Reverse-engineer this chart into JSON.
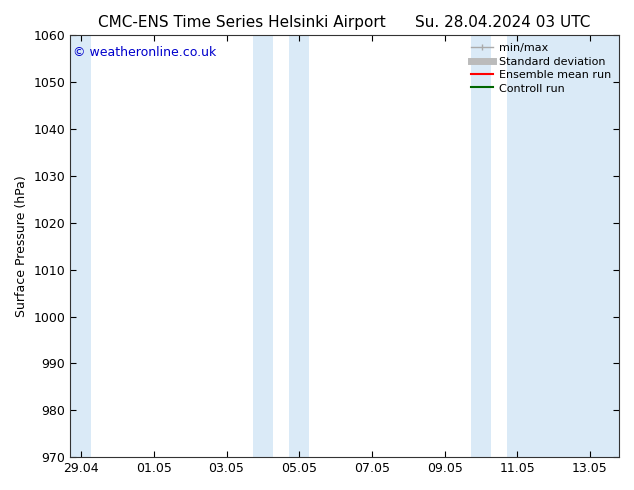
{
  "title_left": "CMC-ENS Time Series Helsinki Airport",
  "title_right": "Su. 28.04.2024 03 UTC",
  "ylabel": "Surface Pressure (hPa)",
  "ylim": [
    970,
    1060
  ],
  "yticks": [
    970,
    980,
    990,
    1000,
    1010,
    1020,
    1030,
    1040,
    1050,
    1060
  ],
  "xtick_labels": [
    "29.04",
    "01.05",
    "03.05",
    "05.05",
    "07.05",
    "09.05",
    "11.05",
    "13.05"
  ],
  "xtick_positions": [
    0,
    2,
    4,
    6,
    8,
    10,
    12,
    14
  ],
  "xmin": -0.3,
  "xmax": 14.8,
  "bg_color": "#ffffff",
  "plot_bg_color": "#ffffff",
  "band_color": "#daeaf7",
  "shaded_bands": [
    {
      "x_start": -0.3,
      "x_end": 0.28
    },
    {
      "x_start": 4.72,
      "x_end": 5.28
    },
    {
      "x_start": 5.72,
      "x_end": 6.28
    },
    {
      "x_start": 10.72,
      "x_end": 11.28
    },
    {
      "x_start": 11.72,
      "x_end": 14.8
    }
  ],
  "legend_entries": [
    {
      "label": "min/max",
      "color": "#aaaaaa",
      "lw": 1.5
    },
    {
      "label": "Standard deviation",
      "color": "#bbbbbb",
      "lw": 5
    },
    {
      "label": "Ensemble mean run",
      "color": "#ff0000",
      "lw": 1.5
    },
    {
      "label": "Controll run",
      "color": "#006600",
      "lw": 1.5
    }
  ],
  "watermark": "© weatheronline.co.uk",
  "watermark_color": "#0000cc",
  "title_fontsize": 11,
  "tick_fontsize": 9,
  "ylabel_fontsize": 9,
  "legend_fontsize": 8
}
